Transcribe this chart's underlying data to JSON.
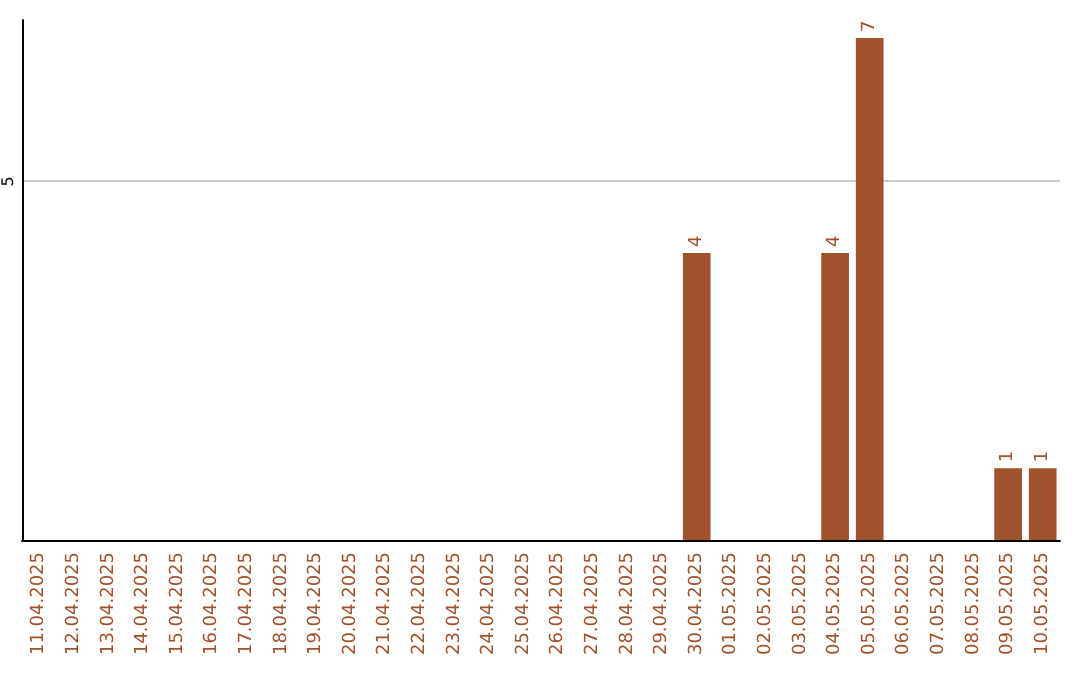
{
  "chart_data": {
    "type": "bar",
    "categories": [
      "11.04.2025",
      "12.04.2025",
      "13.04.2025",
      "14.04.2025",
      "15.04.2025",
      "16.04.2025",
      "17.04.2025",
      "18.04.2025",
      "19.04.2025",
      "20.04.2025",
      "21.04.2025",
      "22.04.2025",
      "23.04.2025",
      "24.04.2025",
      "25.04.2025",
      "26.04.2025",
      "27.04.2025",
      "28.04.2025",
      "29.04.2025",
      "30.04.2025",
      "01.05.2025",
      "02.05.2025",
      "03.05.2025",
      "04.05.2025",
      "05.05.2025",
      "06.05.2025",
      "07.05.2025",
      "08.05.2025",
      "09.05.2025",
      "10.05.2025"
    ],
    "values": [
      null,
      null,
      null,
      null,
      null,
      null,
      null,
      null,
      null,
      null,
      null,
      null,
      null,
      null,
      null,
      null,
      null,
      null,
      null,
      4,
      null,
      null,
      null,
      4,
      7,
      null,
      null,
      null,
      1,
      1
    ],
    "color": "#a0522d",
    "ylim": [
      0,
      7.25
    ],
    "yticks": [
      5
    ],
    "grid": "y",
    "data_labels": true
  }
}
